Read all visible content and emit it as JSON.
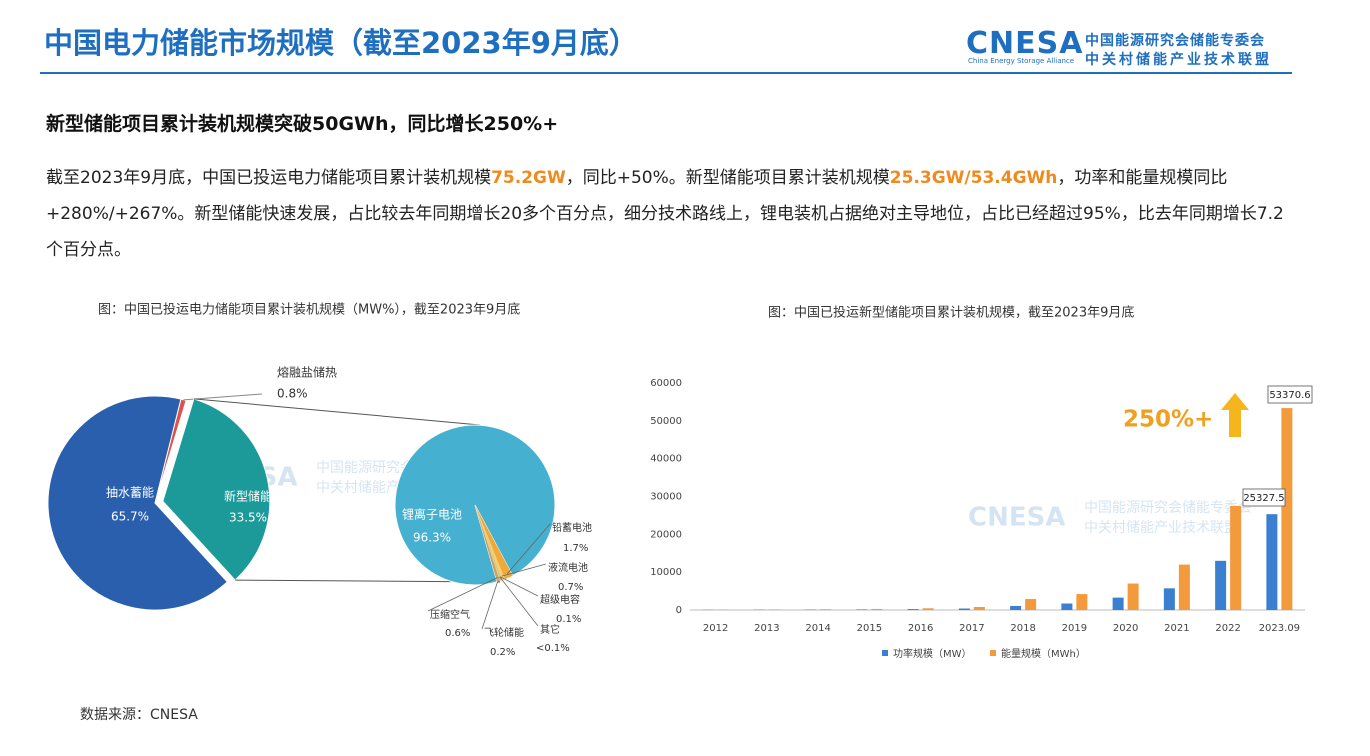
{
  "header": {
    "title": "中国电力储能市场规模（截至2023年9月底）",
    "logo": "CNESA",
    "logo_en": "China Energy Storage Alliance",
    "logo_cn_1": "中国能源研究会储能专委会",
    "logo_cn_2": "中关村储能产业技术联盟"
  },
  "subtitle": "新型储能项目累计装机规模突破50GWh，同比增长250%+",
  "body": {
    "segments": [
      "截至2023年9月底，中国已投运电力储能项目累计装机规模",
      "75.2GW",
      "，同比+50%。新型储能项目累计装机规模",
      "25.3GW/53.4GWh",
      "，功率和能量规模同比+280%/+267%。新型储能快速发展，占比较去年同期增长20多个百分点，细分技术路线上，锂电装机占据绝对主导地位，占比已经超过95%，比去年同期增长7.2个百分点。"
    ]
  },
  "source": "数据来源：CNESA",
  "chart_data": [
    {
      "type": "pie_of_pie",
      "title": "图：中国已投运电力储能项目累计装机规模（MW%），截至2023年9月底",
      "categories": [
        "熔融盐储热",
        "新型储能",
        "抽水蓄能"
      ],
      "values": [
        0.8,
        33.5,
        65.7
      ],
      "value_labels": [
        "0.8%",
        "33.5%",
        "65.7%"
      ],
      "colors": [
        "#d9534f",
        "#1c9a9a",
        "#2a5fae"
      ],
      "sub": {
        "categories": [
          "锂离子电池",
          "铅蓄电池",
          "液流电池",
          "超级电容",
          "其它",
          "飞轮储能",
          "压缩空气"
        ],
        "values": [
          96.3,
          1.7,
          0.7,
          0.1,
          0.05,
          0.2,
          0.6
        ],
        "value_labels": [
          "96.3%",
          "1.7%",
          "0.7%",
          "0.1%",
          "<0.1%",
          "0.2%",
          "0.6%"
        ],
        "colors": [
          "#45b0cf",
          "#f0a83a",
          "#f5cf6a",
          "#b0b0b0",
          "#8a8a8a",
          "#e6d27a",
          "#c9a46a"
        ]
      }
    },
    {
      "type": "bar",
      "title": "图：中国已投运新型储能项目累计装机规模，截至2023年9月底",
      "categories": [
        "2012",
        "2013",
        "2014",
        "2015",
        "2016",
        "2017",
        "2018",
        "2019",
        "2020",
        "2021",
        "2022",
        "2023.09"
      ],
      "series": [
        {
          "name": "功率规模（MW）",
          "color": "#3b7fd0",
          "values": [
            60,
            80,
            110,
            150,
            240,
            390,
            1070,
            1710,
            3270,
            5730,
            13000,
            25327.5
          ]
        },
        {
          "name": "能量规模（MWh）",
          "color": "#f39a3c",
          "values": [
            100,
            150,
            200,
            280,
            460,
            800,
            2900,
            4200,
            7000,
            12000,
            27500,
            53370.6
          ]
        }
      ],
      "ylim": [
        0,
        60000
      ],
      "yticks": [
        0,
        10000,
        20000,
        30000,
        40000,
        50000,
        60000
      ],
      "grid": false,
      "annotation": "250%+"
    }
  ]
}
